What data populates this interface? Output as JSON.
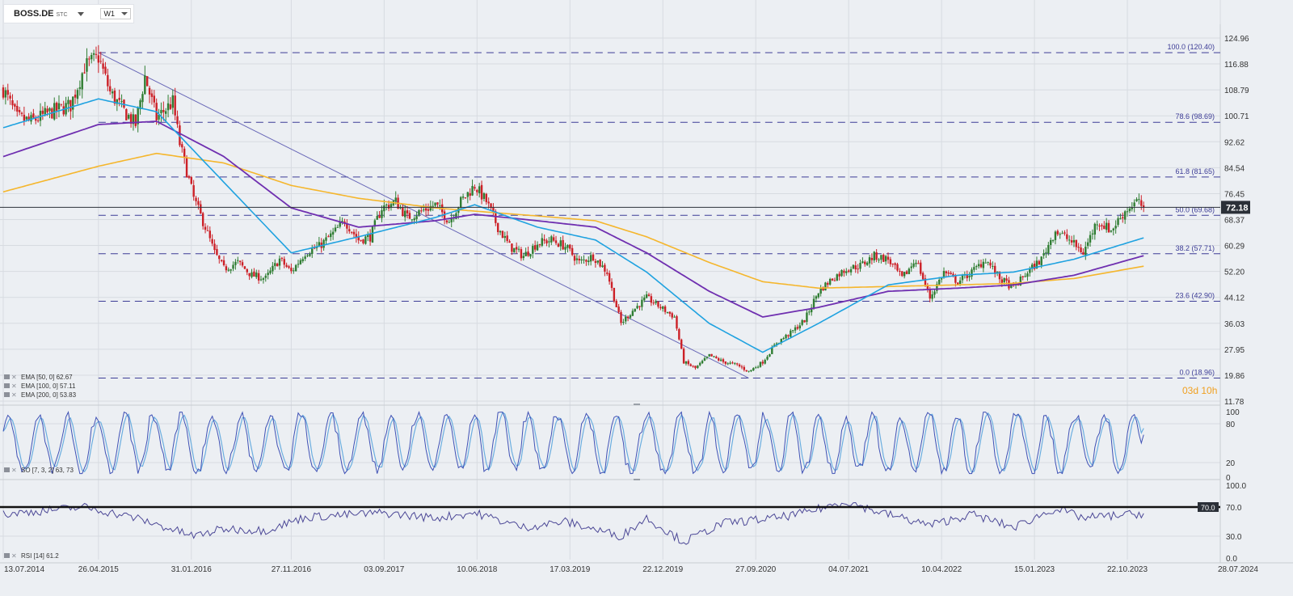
{
  "symbol": "BOSS.DE",
  "symbol_suffix": "STC",
  "timeframe": "W1",
  "countdown": "03d 10h",
  "price_last": "72.18",
  "colors": {
    "ema50": "#1fa2e0",
    "ema100": "#6f2fb0",
    "ema200": "#f5b62c",
    "bull": "#2f7d32",
    "bear": "#cc2027",
    "fib": "#3c3c96",
    "sto_k": "#3f51b5",
    "sto_d": "#6baee0",
    "rsi": "#4b4796",
    "countdown": "#f0a020"
  },
  "x_axis_dates": [
    "13.07.2014",
    "26.04.2015",
    "31.01.2016",
    "27.11.2016",
    "03.09.2017",
    "10.06.2018",
    "17.03.2019",
    "22.12.2019",
    "27.09.2020",
    "04.07.2021",
    "10.04.2022",
    "15.01.2023",
    "22.10.2023",
    "28.07.2024"
  ],
  "y_axis_prices": [
    "124.96",
    "116.88",
    "108.79",
    "100.71",
    "92.62",
    "84.54",
    "76.45",
    "68.37",
    "60.29",
    "52.20",
    "44.12",
    "36.03",
    "27.95",
    "19.86",
    "11.78"
  ],
  "fib_levels": [
    {
      "label": "100.0 (120.40)",
      "price": 120.4
    },
    {
      "label": "78.6 (98.69)",
      "price": 98.69
    },
    {
      "label": "61.8 (81.65)",
      "price": 81.65
    },
    {
      "label": "50.0 (69.68)",
      "price": 69.68
    },
    {
      "label": "38.2 (57.71)",
      "price": 57.71
    },
    {
      "label": "23.6 (42.90)",
      "price": 42.9
    },
    {
      "label": "0.0 (18.96)",
      "price": 18.96
    }
  ],
  "legend": {
    "ema50": "EMA [50, 0]  62.67",
    "ema100": "EMA [100, 0]  57.11",
    "ema200": "EMA [200, 0]  53.83",
    "sto": "SO [7, 3, 2]  63, 73",
    "rsi": "RSI [14]  61.2"
  },
  "sto_axis": [
    "100",
    "80",
    "20",
    "0"
  ],
  "rsi_axis": [
    "100.0",
    "70.0",
    "30.0",
    "0.0"
  ],
  "rsi_level": "70.0",
  "chart_data": {
    "type": "candlestick",
    "title": "",
    "ylim": [
      11.78,
      124.96
    ],
    "price_anchors": [
      [
        "2014-07-13",
        109
      ],
      [
        "2014-08-24",
        100
      ],
      [
        "2014-10-05",
        99
      ],
      [
        "2014-12-07",
        102
      ],
      [
        "2015-02-01",
        104
      ],
      [
        "2015-03-15",
        116
      ],
      [
        "2015-04-26",
        119
      ],
      [
        "2015-05-31",
        108
      ],
      [
        "2015-07-05",
        103
      ],
      [
        "2015-08-16",
        98
      ],
      [
        "2015-09-13",
        113
      ],
      [
        "2015-10-18",
        100
      ],
      [
        "2015-12-06",
        105
      ],
      [
        "2015-12-27",
        92
      ],
      [
        "2016-02-07",
        75
      ],
      [
        "2016-03-13",
        66
      ],
      [
        "2016-04-10",
        58
      ],
      [
        "2016-05-08",
        53
      ],
      [
        "2016-06-19",
        55
      ],
      [
        "2016-07-31",
        51
      ],
      [
        "2016-09-11",
        50
      ],
      [
        "2016-10-23",
        56
      ],
      [
        "2016-11-27",
        52
      ],
      [
        "2017-01-08",
        58
      ],
      [
        "2017-02-19",
        60
      ],
      [
        "2017-04-02",
        64
      ],
      [
        "2017-05-07",
        68
      ],
      [
        "2017-06-18",
        62
      ],
      [
        "2017-07-23",
        63
      ],
      [
        "2017-08-27",
        72
      ],
      [
        "2017-10-08",
        74
      ],
      [
        "2017-11-12",
        69
      ],
      [
        "2017-12-24",
        71
      ],
      [
        "2018-02-04",
        73
      ],
      [
        "2018-03-18",
        68
      ],
      [
        "2018-04-22",
        74
      ],
      [
        "2018-06-03",
        79
      ],
      [
        "2018-07-08",
        74
      ],
      [
        "2018-08-12",
        66
      ],
      [
        "2018-09-16",
        60
      ],
      [
        "2018-10-28",
        57
      ],
      [
        "2018-12-09",
        61
      ],
      [
        "2019-01-20",
        62
      ],
      [
        "2019-03-03",
        60
      ],
      [
        "2019-04-14",
        55
      ],
      [
        "2019-05-26",
        57
      ],
      [
        "2019-07-07",
        52
      ],
      [
        "2019-08-18",
        36
      ],
      [
        "2019-09-22",
        40
      ],
      [
        "2019-11-03",
        44
      ],
      [
        "2019-12-15",
        41
      ],
      [
        "2020-01-26",
        38
      ],
      [
        "2020-02-23",
        24
      ],
      [
        "2020-03-29",
        22
      ],
      [
        "2020-05-10",
        26
      ],
      [
        "2020-06-21",
        24
      ],
      [
        "2020-08-02",
        23
      ],
      [
        "2020-09-06",
        21
      ],
      [
        "2020-10-18",
        24
      ],
      [
        "2020-11-29",
        30
      ],
      [
        "2021-01-10",
        33
      ],
      [
        "2021-02-21",
        37
      ],
      [
        "2021-04-04",
        46
      ],
      [
        "2021-05-16",
        50
      ],
      [
        "2021-06-27",
        53
      ],
      [
        "2021-08-08",
        54
      ],
      [
        "2021-09-19",
        57
      ],
      [
        "2021-10-31",
        56
      ],
      [
        "2021-12-12",
        50
      ],
      [
        "2022-01-23",
        56
      ],
      [
        "2022-03-06",
        44
      ],
      [
        "2022-04-17",
        52
      ],
      [
        "2022-05-29",
        49
      ],
      [
        "2022-07-10",
        52
      ],
      [
        "2022-08-21",
        56
      ],
      [
        "2022-10-02",
        50
      ],
      [
        "2022-11-13",
        47
      ],
      [
        "2022-12-25",
        52
      ],
      [
        "2023-02-05",
        56
      ],
      [
        "2023-03-19",
        65
      ],
      [
        "2023-04-30",
        62
      ],
      [
        "2023-06-11",
        58
      ],
      [
        "2023-07-23",
        68
      ],
      [
        "2023-09-03",
        65
      ],
      [
        "2023-10-15",
        71
      ],
      [
        "2023-11-19",
        74
      ],
      [
        "2023-12-10",
        72.18
      ]
    ],
    "ema_anchors": {
      "ema50": [
        [
          "2014-07-13",
          97
        ],
        [
          "2015-04-26",
          106
        ],
        [
          "2015-10-18",
          102
        ],
        [
          "2016-05-08",
          80
        ],
        [
          "2016-11-27",
          58
        ],
        [
          "2017-06-18",
          63
        ],
        [
          "2018-02-04",
          69
        ],
        [
          "2018-06-03",
          73
        ],
        [
          "2018-12-09",
          66
        ],
        [
          "2019-06-02",
          62
        ],
        [
          "2019-11-03",
          52
        ],
        [
          "2020-05-10",
          36
        ],
        [
          "2020-10-18",
          27
        ],
        [
          "2021-04-04",
          36
        ],
        [
          "2021-10-31",
          48
        ],
        [
          "2022-05-29",
          51
        ],
        [
          "2022-11-13",
          52
        ],
        [
          "2023-05-14",
          56
        ],
        [
          "2023-12-10",
          62.67
        ]
      ],
      "ema100": [
        [
          "2014-07-13",
          88
        ],
        [
          "2015-04-26",
          98
        ],
        [
          "2015-10-18",
          99
        ],
        [
          "2016-05-08",
          88
        ],
        [
          "2016-11-27",
          72
        ],
        [
          "2017-06-18",
          66
        ],
        [
          "2018-02-04",
          68
        ],
        [
          "2018-06-03",
          70
        ],
        [
          "2018-12-09",
          68
        ],
        [
          "2019-06-02",
          66
        ],
        [
          "2019-11-03",
          58
        ],
        [
          "2020-05-10",
          46
        ],
        [
          "2020-10-18",
          38
        ],
        [
          "2021-04-04",
          41
        ],
        [
          "2021-10-31",
          46
        ],
        [
          "2022-05-29",
          47
        ],
        [
          "2022-11-13",
          48
        ],
        [
          "2023-05-14",
          51
        ],
        [
          "2023-12-10",
          57.11
        ]
      ],
      "ema200": [
        [
          "2014-07-13",
          77
        ],
        [
          "2015-04-26",
          85
        ],
        [
          "2015-10-18",
          89
        ],
        [
          "2016-05-08",
          86
        ],
        [
          "2016-11-27",
          79
        ],
        [
          "2017-06-18",
          75
        ],
        [
          "2018-02-04",
          72
        ],
        [
          "2018-06-03",
          71
        ],
        [
          "2018-12-09",
          69.5
        ],
        [
          "2019-06-02",
          68
        ],
        [
          "2019-11-03",
          63
        ],
        [
          "2020-05-10",
          55
        ],
        [
          "2020-10-18",
          49
        ],
        [
          "2021-04-04",
          47
        ],
        [
          "2021-10-31",
          47.5
        ],
        [
          "2022-05-29",
          48
        ],
        [
          "2022-11-13",
          48.5
        ],
        [
          "2023-05-14",
          50
        ],
        [
          "2023-12-10",
          53.83
        ]
      ]
    },
    "trendline": [
      [
        "2015-04-26",
        120.4
      ],
      [
        "2020-09-06",
        18.96
      ]
    ],
    "stochastic": {
      "k_last": 63,
      "d_last": 73,
      "ylim": [
        0,
        100
      ]
    },
    "rsi": {
      "ylim": [
        0,
        100
      ],
      "last": 61.2,
      "anchors": [
        [
          "2014-07-13",
          60
        ],
        [
          "2015-03-15",
          70
        ],
        [
          "2015-08-16",
          55
        ],
        [
          "2016-02-07",
          30
        ],
        [
          "2016-05-08",
          40
        ],
        [
          "2016-09-11",
          38
        ],
        [
          "2017-01-08",
          56
        ],
        [
          "2017-08-27",
          62
        ],
        [
          "2018-02-04",
          55
        ],
        [
          "2018-06-03",
          62
        ],
        [
          "2018-10-28",
          42
        ],
        [
          "2019-03-03",
          50
        ],
        [
          "2019-08-18",
          30
        ],
        [
          "2019-11-03",
          55
        ],
        [
          "2020-02-23",
          22
        ],
        [
          "2020-06-21",
          48
        ],
        [
          "2020-11-29",
          55
        ],
        [
          "2021-02-21",
          62
        ],
        [
          "2021-06-27",
          78
        ],
        [
          "2021-09-19",
          65
        ],
        [
          "2022-03-06",
          45
        ],
        [
          "2022-07-10",
          60
        ],
        [
          "2022-11-13",
          42
        ],
        [
          "2023-03-19",
          68
        ],
        [
          "2023-06-11",
          55
        ],
        [
          "2023-12-10",
          61.2
        ]
      ]
    }
  }
}
